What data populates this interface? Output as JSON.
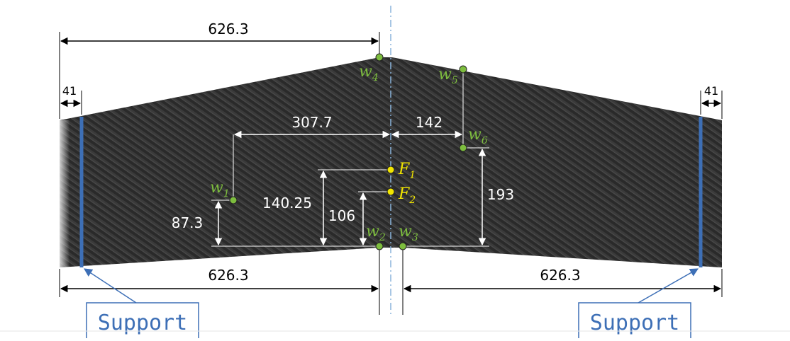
{
  "colors": {
    "panel": "#2b2b2b",
    "point_w": "#7dbd3e",
    "point_f": "#f2e600",
    "support": "#3d6fb6",
    "centerline": "#8ab4dc"
  },
  "dimensions": {
    "top_left_span": "626.3",
    "left_edge": "41",
    "right_edge": "41",
    "w1_to_center": "307.7",
    "center_to_w6": "142",
    "w1_height": "87.3",
    "f1_height": "140.25",
    "f2_height": "106",
    "w6_height": "193",
    "bottom_left_span": "626.3",
    "bottom_right_span": "626.3"
  },
  "points": {
    "w1": {
      "name": "w",
      "sub": "1"
    },
    "w2": {
      "name": "w",
      "sub": "2"
    },
    "w3": {
      "name": "w",
      "sub": "3"
    },
    "w4": {
      "name": "w",
      "sub": "4"
    },
    "w5": {
      "name": "w",
      "sub": "5"
    },
    "w6": {
      "name": "w",
      "sub": "6"
    },
    "f1": {
      "name": "F",
      "sub": "1"
    },
    "f2": {
      "name": "F",
      "sub": "2"
    }
  },
  "supports": {
    "left_label": "Support",
    "right_label": "Support"
  }
}
